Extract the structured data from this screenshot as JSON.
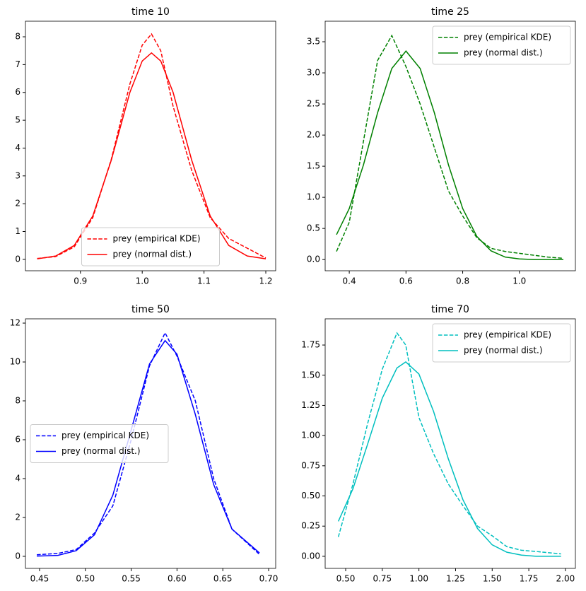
{
  "chart_data": [
    {
      "type": "line",
      "title": "time 10",
      "x": [
        0.83,
        0.86,
        0.89,
        0.92,
        0.95,
        0.98,
        1.0,
        1.015,
        1.03,
        1.05,
        1.08,
        1.11,
        1.14,
        1.17,
        1.2
      ],
      "series": [
        {
          "name": "prey (empirical KDE)",
          "color": "#ff0000",
          "linestyle": "dashed",
          "values": [
            0.03,
            0.1,
            0.45,
            1.5,
            3.6,
            6.3,
            7.7,
            8.1,
            7.5,
            5.5,
            3.2,
            1.5,
            0.75,
            0.4,
            0.05
          ]
        },
        {
          "name": "prey (normal dist.)",
          "color": "#ff0000",
          "linestyle": "solid",
          "values": [
            0.02,
            0.12,
            0.5,
            1.56,
            3.57,
            6.0,
            7.13,
            7.42,
            7.13,
            6.0,
            3.57,
            1.56,
            0.5,
            0.12,
            0.02
          ]
        }
      ],
      "xlim": [
        0.811,
        1.216
      ],
      "ylim": [
        -0.41,
        8.56
      ],
      "xticks": [
        0.9,
        {
          "value": 1,
          "label": "1.0"
        },
        1.1,
        1.2
      ],
      "yticks": [
        0,
        1,
        2,
        3,
        4,
        5,
        6,
        7,
        8
      ],
      "legend": "lower center"
    },
    {
      "type": "line",
      "title": "time 25",
      "x": [
        0.355,
        0.4,
        0.45,
        0.5,
        0.55,
        0.6,
        0.65,
        0.7,
        0.75,
        0.8,
        0.85,
        0.9,
        0.95,
        1.0,
        1.05,
        1.1,
        1.155
      ],
      "series": [
        {
          "name": "prey (empirical KDE)",
          "color": "#008000",
          "linestyle": "dashed",
          "values": [
            0.13,
            0.6,
            1.9,
            3.2,
            3.6,
            3.1,
            2.5,
            1.8,
            1.1,
            0.7,
            0.35,
            0.18,
            0.13,
            0.1,
            0.07,
            0.04,
            0.02
          ]
        },
        {
          "name": "prey (normal dist.)",
          "color": "#008000",
          "linestyle": "solid",
          "values": [
            0.4,
            0.82,
            1.52,
            2.36,
            3.07,
            3.35,
            3.07,
            2.36,
            1.52,
            0.82,
            0.37,
            0.14,
            0.04,
            0.01,
            0,
            0,
            0
          ]
        }
      ],
      "xlim": [
        0.315,
        1.1975
      ],
      "ylim": [
        -0.18,
        3.83
      ],
      "xticks": [
        0.4,
        0.6,
        0.8,
        {
          "value": 1,
          "label": "1.0"
        }
      ],
      "yticks": [
        {
          "value": 0,
          "label": "0.0"
        },
        0.5,
        {
          "value": 1,
          "label": "1.0"
        },
        1.5,
        {
          "value": 2,
          "label": "2.0"
        },
        2.5,
        {
          "value": 3,
          "label": "3.0"
        },
        3.5
      ],
      "legend": "upper right"
    },
    {
      "type": "line",
      "title": "time 50",
      "x": [
        0.447,
        0.47,
        0.49,
        0.51,
        0.53,
        0.55,
        0.57,
        0.587,
        0.6,
        0.62,
        0.64,
        0.66,
        0.69
      ],
      "series": [
        {
          "name": "prey (empirical KDE)",
          "color": "#0000ff",
          "linestyle": "dashed",
          "values": [
            0.08,
            0.15,
            0.35,
            1.2,
            2.6,
            6.0,
            9.8,
            11.5,
            10.3,
            8.0,
            4.0,
            1.4,
            0.1
          ]
        },
        {
          "name": "prey (normal dist.)",
          "color": "#0000ff",
          "linestyle": "solid",
          "values": [
            0.01,
            0.05,
            0.29,
            1.11,
            3.15,
            6.5,
            9.9,
            11.1,
            10.4,
            7.3,
            3.7,
            1.4,
            0.18
          ]
        }
      ],
      "xlim": [
        0.4346,
        0.7077
      ],
      "ylim": [
        -0.62,
        12.22
      ],
      "xticks": [
        0.45,
        {
          "value": 0.5,
          "label": "0.50"
        },
        0.55,
        {
          "value": 0.6,
          "label": "0.60"
        },
        0.65,
        {
          "value": 0.7,
          "label": "0.70"
        }
      ],
      "yticks": [
        0,
        2,
        4,
        6,
        8,
        10,
        12
      ],
      "legend": "center left"
    },
    {
      "type": "line",
      "title": "time 70",
      "x": [
        0.45,
        0.55,
        0.65,
        0.75,
        0.85,
        0.91,
        1.0,
        1.1,
        1.2,
        1.3,
        1.4,
        1.5,
        1.6,
        1.7,
        1.8,
        1.97
      ],
      "series": [
        {
          "name": "prey (empirical KDE)",
          "color": "#00bfbf",
          "linestyle": "dashed",
          "values": [
            0.16,
            0.6,
            1.1,
            1.55,
            1.85,
            1.75,
            1.15,
            0.85,
            0.6,
            0.42,
            0.25,
            0.17,
            0.08,
            0.05,
            0.04,
            0.02
          ]
        },
        {
          "name": "prey (normal dist.)",
          "color": "#00bfbf",
          "linestyle": "solid",
          "values": [
            0.29,
            0.56,
            0.93,
            1.31,
            1.56,
            1.61,
            1.51,
            1.2,
            0.81,
            0.47,
            0.23,
            0.095,
            0.034,
            0.01,
            0,
            0
          ]
        }
      ],
      "xlim": [
        0.36,
        2.068
      ],
      "ylim": [
        -0.1,
        1.967
      ],
      "xticks": [
        {
          "value": 0.5,
          "label": "0.50"
        },
        0.75,
        {
          "value": 1,
          "label": "1.00"
        },
        1.25,
        {
          "value": 1.5,
          "label": "1.50"
        },
        1.75,
        {
          "value": 2,
          "label": "2.00"
        }
      ],
      "yticks": [
        {
          "value": 0,
          "label": "0.00"
        },
        0.25,
        {
          "value": 0.5,
          "label": "0.50"
        },
        0.75,
        {
          "value": 1,
          "label": "1.00"
        },
        1.25,
        {
          "value": 1.5,
          "label": "1.50"
        },
        1.75
      ],
      "legend": "upper right"
    }
  ]
}
